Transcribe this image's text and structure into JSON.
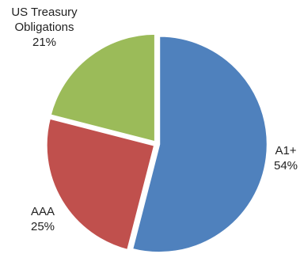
{
  "chart_data": {
    "type": "pie",
    "title": "",
    "start_angle_deg": 0,
    "direction": "clockwise",
    "slices": [
      {
        "name": "A1+",
        "value": 54,
        "label": "A1+",
        "pct_label": "54%",
        "color": "#4F81BD"
      },
      {
        "name": "AAA",
        "value": 25,
        "label": "AAA",
        "pct_label": "25%",
        "color": "#C0504D"
      },
      {
        "name": "US Treasury Obligations",
        "value": 21,
        "label": "US Treasury\nObligations",
        "pct_label": "21%",
        "color": "#9BBB59"
      }
    ],
    "slice_border_color": "#ffffff",
    "legend": "none"
  }
}
